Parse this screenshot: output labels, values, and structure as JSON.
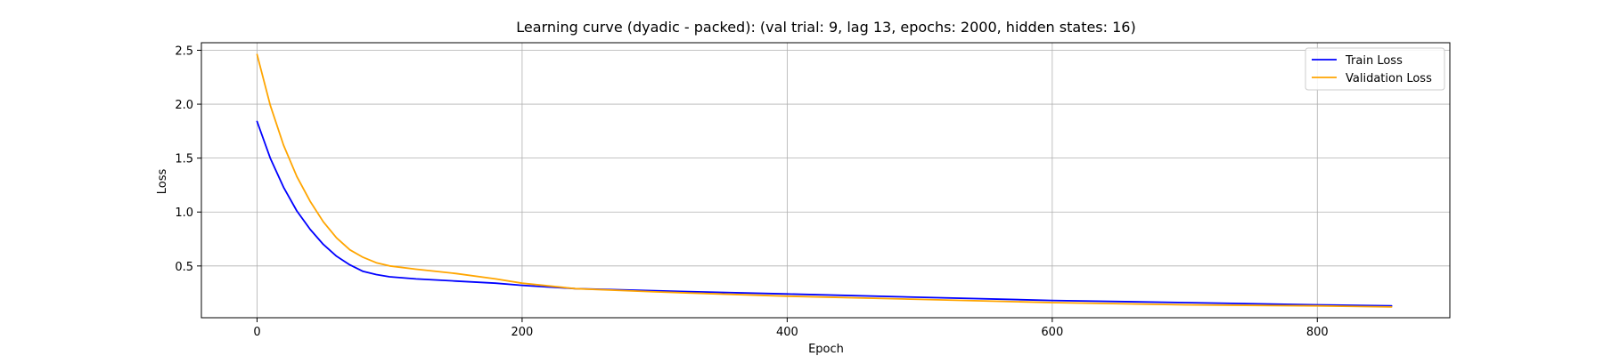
{
  "chart_data": {
    "type": "line",
    "title": "Learning curve (dyadic - packed): (val trial: 9, lag 13, epochs: 2000, hidden states: 16)",
    "xlabel": "Epoch",
    "ylabel": "Loss",
    "xlim": [
      -42,
      900
    ],
    "ylim": [
      0.02,
      2.57
    ],
    "xticks": [
      0,
      200,
      400,
      600,
      800
    ],
    "yticks": [
      0.5,
      1.0,
      1.5,
      2.0,
      2.5
    ],
    "xtick_labels": [
      "0",
      "200",
      "400",
      "600",
      "800"
    ],
    "ytick_labels": [
      "0.5",
      "1.0",
      "1.5",
      "2.0",
      "2.5"
    ],
    "grid": true,
    "legend_position": "top-right",
    "series": [
      {
        "name": "Train Loss",
        "color": "#0000ff",
        "x": [
          0,
          10,
          20,
          30,
          40,
          50,
          60,
          70,
          80,
          90,
          100,
          120,
          150,
          180,
          200,
          240,
          300,
          400,
          500,
          600,
          700,
          800,
          856
        ],
        "y": [
          1.84,
          1.5,
          1.23,
          1.01,
          0.84,
          0.7,
          0.59,
          0.51,
          0.45,
          0.42,
          0.4,
          0.38,
          0.36,
          0.34,
          0.32,
          0.29,
          0.27,
          0.24,
          0.21,
          0.18,
          0.16,
          0.14,
          0.13
        ]
      },
      {
        "name": "Validation Loss",
        "color": "#ffa500",
        "x": [
          0,
          10,
          20,
          30,
          40,
          50,
          60,
          70,
          80,
          90,
          100,
          120,
          150,
          180,
          200,
          240,
          300,
          400,
          500,
          600,
          700,
          800,
          856
        ],
        "y": [
          2.46,
          1.99,
          1.62,
          1.33,
          1.1,
          0.91,
          0.76,
          0.65,
          0.58,
          0.53,
          0.5,
          0.47,
          0.43,
          0.38,
          0.34,
          0.29,
          0.26,
          0.22,
          0.19,
          0.16,
          0.14,
          0.13,
          0.12
        ]
      }
    ]
  }
}
